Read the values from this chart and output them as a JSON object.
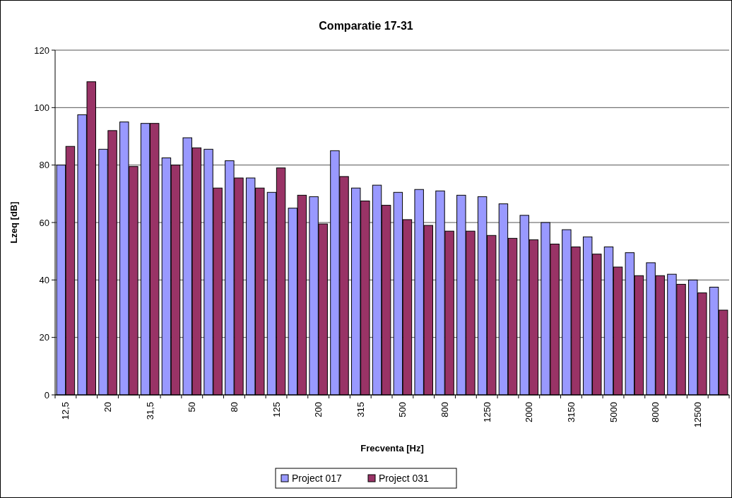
{
  "chart_data": {
    "type": "bar",
    "title": "Comparatie 17-31",
    "xlabel": "Frecventa [Hz]",
    "ylabel": "Lzeq [dB]",
    "categories": [
      "12,5",
      null,
      "20",
      null,
      "31,5",
      null,
      "50",
      null,
      "80",
      null,
      "125",
      null,
      "200",
      null,
      "315",
      null,
      "500",
      null,
      "800",
      null,
      "1250",
      null,
      "2000",
      null,
      "3150",
      null,
      "5000",
      null,
      "8000",
      null,
      "12500",
      null
    ],
    "series": [
      {
        "name": "Project 017",
        "color": "#9999ff",
        "values": [
          80,
          97.5,
          85.5,
          95,
          94.5,
          82.5,
          89.5,
          85.5,
          81.5,
          75.5,
          70.5,
          65,
          69,
          85,
          72,
          73,
          70.5,
          71.5,
          71,
          69.5,
          69,
          66.5,
          62.5,
          60,
          57.5,
          55,
          51.5,
          49.5,
          46,
          42,
          40,
          37.5
        ]
      },
      {
        "name": "Project 031",
        "color": "#993366",
        "values": [
          86.5,
          109,
          92,
          79.5,
          94.5,
          80,
          86,
          72,
          75.5,
          72,
          79,
          69.5,
          59.5,
          76,
          67.5,
          66,
          61,
          59,
          57,
          57,
          55.5,
          54.5,
          54,
          52.5,
          51.5,
          49,
          44.5,
          41.5,
          41.5,
          38.5,
          35.5,
          29.5
        ]
      }
    ],
    "ylim": [
      0,
      120
    ],
    "yticks": [
      0,
      20,
      40,
      60,
      80,
      100,
      120
    ],
    "grid": "y",
    "legend": "bottom"
  }
}
